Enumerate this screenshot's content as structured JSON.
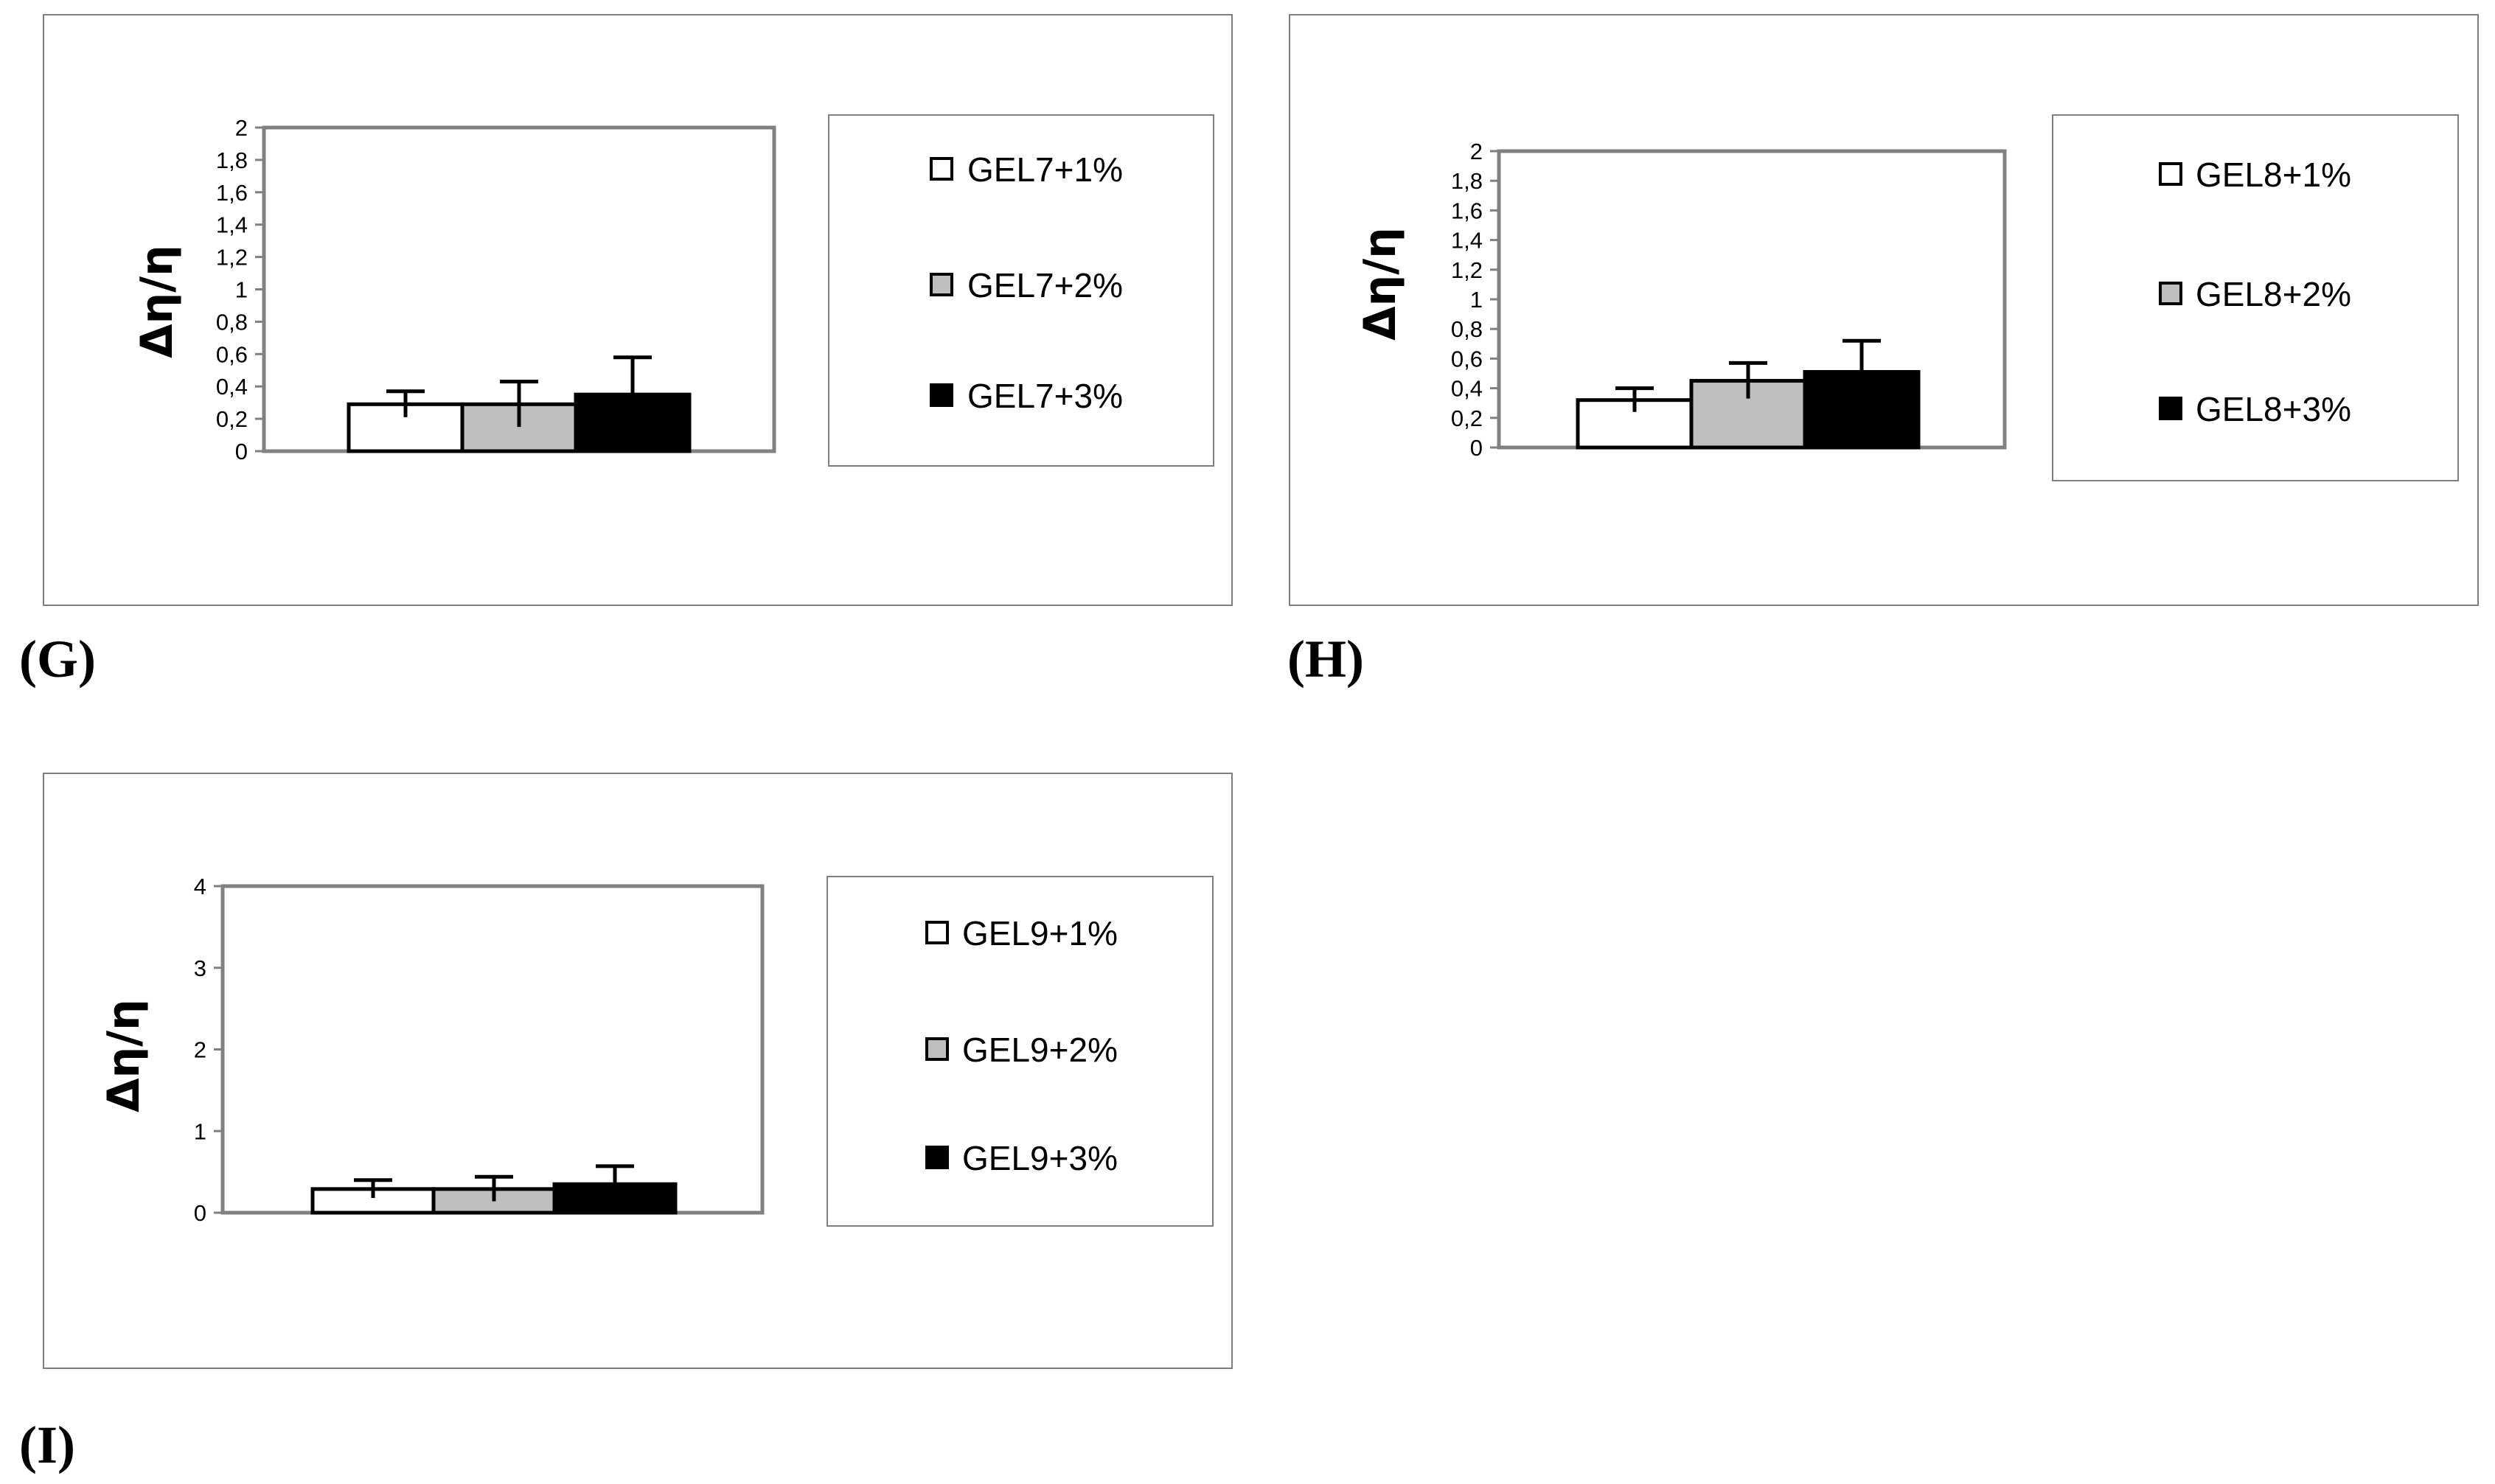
{
  "colors": {
    "s1": "#ffffff",
    "s2": "#bfbfbf",
    "s3": "#000000",
    "frame": "#808080",
    "border": "#7f7f7f"
  },
  "panels": {
    "g": {
      "label": "(G)"
    },
    "h": {
      "label": "(H)"
    },
    "i": {
      "label": "(I)"
    }
  },
  "chart_data": [
    {
      "panel": "G",
      "type": "bar",
      "ylabel": "Δη/η",
      "ylim": [
        0,
        2
      ],
      "yticks": [
        "0",
        "0,2",
        "0,4",
        "0,6",
        "0,8",
        "1",
        "1,2",
        "1,4",
        "1,6",
        "1,8",
        "2"
      ],
      "legend_position": "right",
      "series": [
        {
          "name": "GEL7+1%",
          "value": 0.29,
          "error": 0.08
        },
        {
          "name": "GEL7+2%",
          "value": 0.29,
          "error": 0.14
        },
        {
          "name": "GEL7+3%",
          "value": 0.35,
          "error": 0.23
        }
      ]
    },
    {
      "panel": "H",
      "type": "bar",
      "ylabel": "Δη/η",
      "ylim": [
        0,
        2
      ],
      "yticks": [
        "0",
        "0,2",
        "0,4",
        "0,6",
        "0,8",
        "1",
        "1,2",
        "1,4",
        "1,6",
        "1,8",
        "2"
      ],
      "legend_position": "right",
      "series": [
        {
          "name": "GEL8+1%",
          "value": 0.32,
          "error": 0.08
        },
        {
          "name": "GEL8+2%",
          "value": 0.45,
          "error": 0.12
        },
        {
          "name": "GEL8+3%",
          "value": 0.51,
          "error": 0.21
        }
      ]
    },
    {
      "panel": "I",
      "type": "bar",
      "ylabel": "Δη/η",
      "ylim": [
        0,
        4
      ],
      "yticks": [
        "0",
        "1",
        "2",
        "3",
        "4"
      ],
      "legend_position": "right",
      "series": [
        {
          "name": "GEL9+1%",
          "value": 0.29,
          "error": 0.11
        },
        {
          "name": "GEL9+2%",
          "value": 0.29,
          "error": 0.15
        },
        {
          "name": "GEL9+3%",
          "value": 0.35,
          "error": 0.22
        }
      ]
    }
  ]
}
